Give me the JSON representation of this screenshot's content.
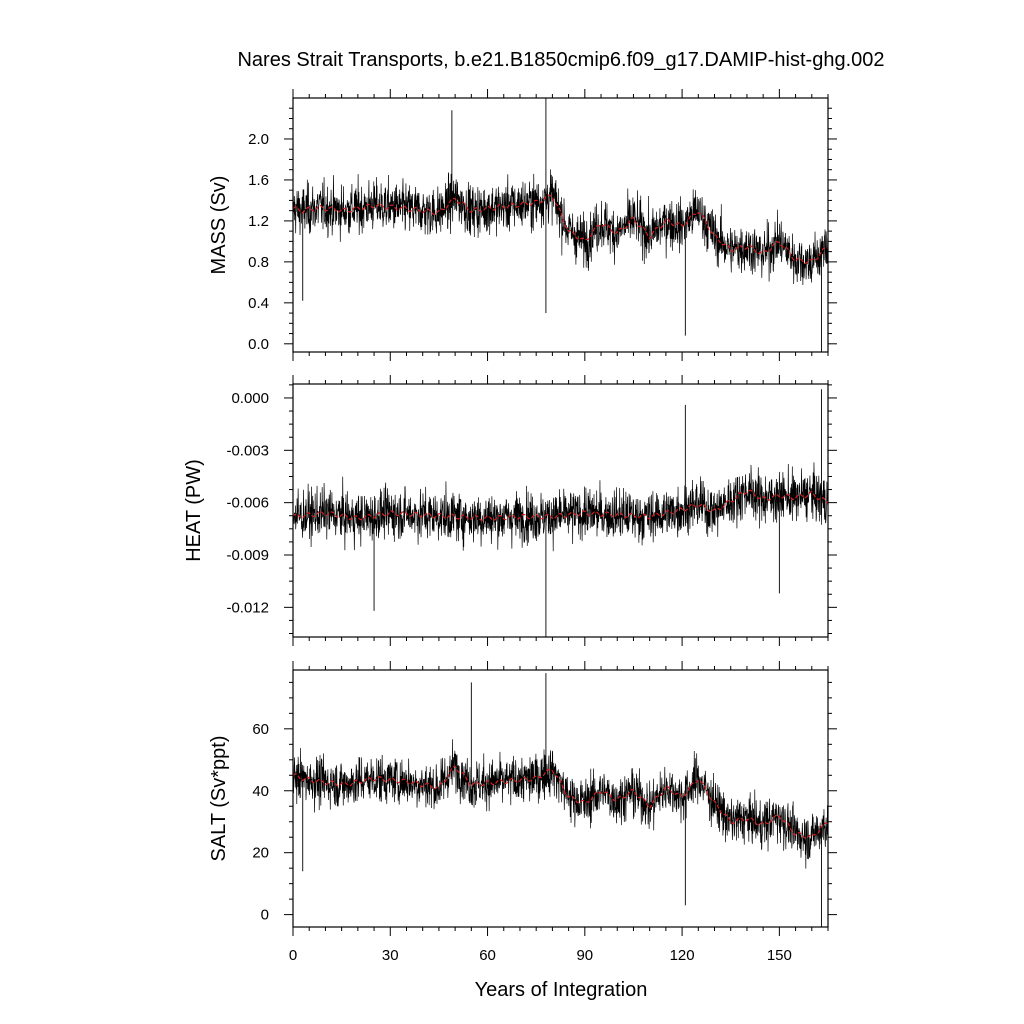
{
  "title": "Nares Strait Transports, b.e21.B1850cmip6.f09_g17.DAMIP-hist-ghg.002",
  "xlabel": "Years of Integration",
  "colors": {
    "raw": "#000000",
    "smooth": "#d62020",
    "frame": "#000000"
  },
  "chart_data": [
    {
      "type": "line",
      "panel": "mass",
      "ylabel": "MASS (Sv)",
      "xlim": [
        0,
        165
      ],
      "ylim": [
        -0.08,
        2.4
      ],
      "yticks": [
        0.0,
        0.4,
        0.8,
        1.2,
        1.6,
        2.0
      ],
      "ytick_labels": [
        "0.0",
        "0.4",
        "0.8",
        "1.2",
        "1.6",
        "2.0"
      ],
      "xticks": [
        0,
        30,
        60,
        90,
        120,
        150
      ],
      "xtick_labels": [],
      "series": [
        {
          "role": "raw",
          "x": [
            0,
            3,
            8,
            16,
            25,
            35,
            45,
            50,
            55,
            65,
            75,
            80,
            85,
            90,
            95,
            100,
            105,
            110,
            115,
            120,
            125,
            130,
            135,
            140,
            145,
            150,
            155,
            160,
            165
          ],
          "values": [
            1.32,
            1.3,
            1.33,
            1.3,
            1.35,
            1.32,
            1.28,
            1.42,
            1.3,
            1.34,
            1.38,
            1.45,
            1.1,
            1.0,
            1.18,
            1.08,
            1.22,
            1.05,
            1.2,
            1.15,
            1.3,
            1.05,
            0.92,
            0.95,
            0.88,
            1.0,
            0.82,
            0.8,
            0.95
          ]
        },
        {
          "role": "smooth",
          "x": [
            0,
            3,
            8,
            16,
            25,
            35,
            45,
            50,
            55,
            65,
            75,
            80,
            85,
            90,
            95,
            100,
            105,
            110,
            115,
            120,
            125,
            130,
            135,
            140,
            145,
            150,
            155,
            160,
            165
          ],
          "values": [
            1.32,
            1.3,
            1.33,
            1.3,
            1.35,
            1.32,
            1.28,
            1.42,
            1.3,
            1.34,
            1.38,
            1.45,
            1.1,
            1.0,
            1.18,
            1.08,
            1.22,
            1.05,
            1.2,
            1.15,
            1.3,
            1.05,
            0.92,
            0.95,
            0.88,
            1.0,
            0.82,
            0.8,
            0.95
          ]
        }
      ],
      "raw_spread": 0.19,
      "raw_extremes": [
        [
          49,
          2.28
        ],
        [
          78,
          2.4
        ],
        [
          78,
          0.3
        ],
        [
          121,
          0.08
        ],
        [
          163,
          -0.08
        ],
        [
          3,
          0.42
        ]
      ]
    },
    {
      "type": "line",
      "panel": "heat",
      "ylabel": "HEAT (PW)",
      "xlim": [
        0,
        165
      ],
      "ylim": [
        -0.0137,
        0.0008
      ],
      "yticks": [
        0.0,
        -0.003,
        -0.006,
        -0.009,
        -0.012
      ],
      "ytick_labels": [
        "0.000",
        "-0.003",
        "-0.006",
        "-0.009",
        "-0.012"
      ],
      "xticks": [
        0,
        30,
        60,
        90,
        120,
        150
      ],
      "xtick_labels": [],
      "series": [
        {
          "role": "raw",
          "x": [
            0,
            10,
            20,
            30,
            40,
            50,
            60,
            70,
            80,
            90,
            100,
            110,
            120,
            125,
            130,
            135,
            140,
            145,
            150,
            155,
            160,
            165
          ],
          "values": [
            -0.0068,
            -0.0066,
            -0.0069,
            -0.0066,
            -0.0067,
            -0.0068,
            -0.0069,
            -0.0068,
            -0.0068,
            -0.0066,
            -0.0067,
            -0.0068,
            -0.0064,
            -0.0061,
            -0.0065,
            -0.0059,
            -0.0053,
            -0.0058,
            -0.0056,
            -0.0057,
            -0.0055,
            -0.006
          ]
        },
        {
          "role": "smooth",
          "x": [
            0,
            10,
            20,
            30,
            40,
            50,
            60,
            70,
            80,
            90,
            100,
            110,
            120,
            125,
            130,
            135,
            140,
            145,
            150,
            155,
            160,
            165
          ],
          "values": [
            -0.0068,
            -0.0066,
            -0.0069,
            -0.0066,
            -0.0067,
            -0.0068,
            -0.0069,
            -0.0068,
            -0.0068,
            -0.0066,
            -0.0067,
            -0.0068,
            -0.0064,
            -0.0061,
            -0.0065,
            -0.0059,
            -0.0053,
            -0.0058,
            -0.0056,
            -0.0057,
            -0.0055,
            -0.006
          ]
        }
      ],
      "raw_spread": 0.0011,
      "raw_extremes": [
        [
          78,
          -0.0137
        ],
        [
          121,
          -0.0004
        ],
        [
          163,
          0.0005
        ],
        [
          25,
          -0.0122
        ],
        [
          150,
          -0.0112
        ]
      ]
    },
    {
      "type": "line",
      "panel": "salt",
      "ylabel": "SALT (Sv*ppt)",
      "xlim": [
        0,
        165
      ],
      "ylim": [
        -4,
        79
      ],
      "yticks": [
        0,
        20,
        40,
        60
      ],
      "ytick_labels": [
        "0",
        "20",
        "40",
        "60"
      ],
      "xticks": [
        0,
        30,
        60,
        90,
        120,
        150
      ],
      "xtick_labels": [
        "0",
        "30",
        "60",
        "90",
        "120",
        "150"
      ],
      "series": [
        {
          "role": "raw",
          "x": [
            0,
            3,
            8,
            16,
            25,
            35,
            45,
            50,
            55,
            65,
            75,
            80,
            85,
            90,
            95,
            100,
            105,
            110,
            115,
            120,
            125,
            130,
            135,
            140,
            145,
            150,
            155,
            160,
            165
          ],
          "values": [
            45,
            44,
            43,
            42,
            44,
            43,
            41,
            48,
            42,
            43,
            44,
            47,
            38,
            36,
            40,
            37,
            40,
            35,
            41,
            38,
            44,
            36,
            30,
            31,
            29,
            32,
            26,
            25,
            30
          ]
        },
        {
          "role": "smooth",
          "x": [
            0,
            3,
            8,
            16,
            25,
            35,
            45,
            50,
            55,
            65,
            75,
            80,
            85,
            90,
            95,
            100,
            105,
            110,
            115,
            120,
            125,
            130,
            135,
            140,
            145,
            150,
            155,
            160,
            165
          ],
          "values": [
            45,
            44,
            43,
            42,
            44,
            43,
            41,
            48,
            42,
            43,
            44,
            47,
            38,
            36,
            40,
            37,
            40,
            35,
            41,
            38,
            44,
            36,
            30,
            31,
            29,
            32,
            26,
            25,
            30
          ]
        }
      ],
      "raw_spread": 6.0,
      "raw_extremes": [
        [
          78,
          78
        ],
        [
          55,
          75
        ],
        [
          121,
          3
        ],
        [
          163,
          -4
        ],
        [
          3,
          14
        ]
      ]
    }
  ]
}
